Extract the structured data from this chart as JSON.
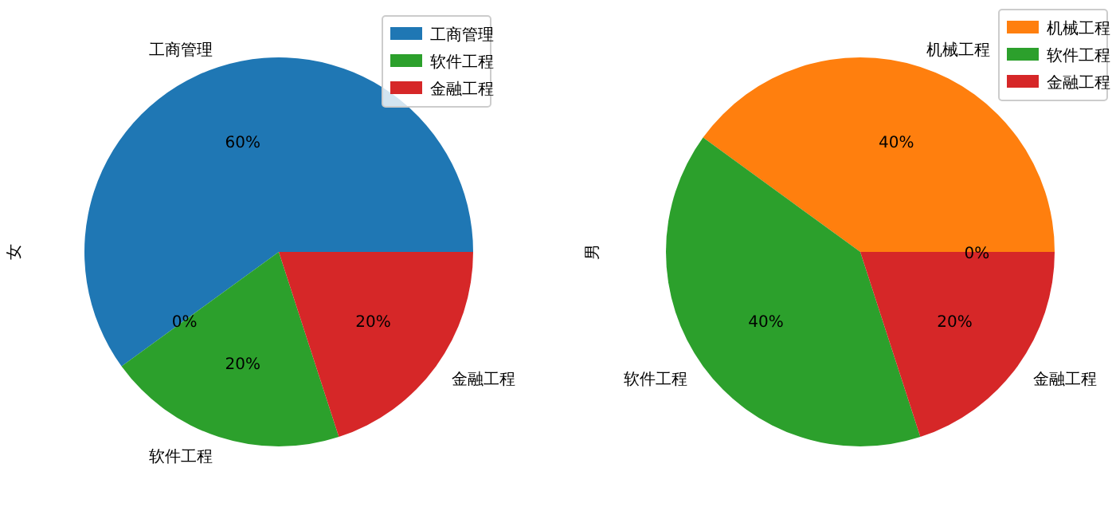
{
  "chart_data": [
    {
      "type": "pie",
      "ylabel": "女",
      "categories": [
        "工商管理",
        null,
        "软件工程",
        "金融工程"
      ],
      "values": [
        60,
        0,
        20,
        20
      ],
      "colors": [
        "#1f77b4",
        "#ff7f0e",
        "#2ca02c",
        "#d62728"
      ],
      "value_labels": [
        "60%",
        "0%",
        "20%",
        "20%"
      ],
      "legend": "top right"
    },
    {
      "type": "pie",
      "ylabel": "男",
      "categories": [
        null,
        "机械工程",
        "软件工程",
        "金融工程"
      ],
      "values": [
        0,
        40,
        40,
        20
      ],
      "colors": [
        "#1f77b4",
        "#ff7f0e",
        "#2ca02c",
        "#d62728"
      ],
      "value_labels": [
        "0%",
        "40%",
        "40%",
        "20%"
      ],
      "legend": "top right"
    }
  ]
}
